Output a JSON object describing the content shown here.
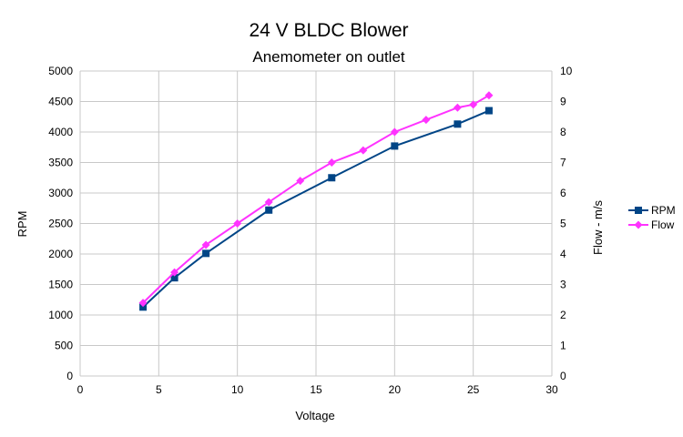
{
  "chart_data": {
    "type": "line",
    "title": "24 V BLDC Blower",
    "subtitle": "Anemometer on outlet",
    "xlabel": "Voltage",
    "ylabel": "RPM",
    "y2label": "Flow - m/s",
    "xlim": [
      0,
      30
    ],
    "ylim": [
      0,
      5000
    ],
    "y2lim": [
      0,
      10
    ],
    "xticks": [
      "0",
      "5",
      "10",
      "15",
      "20",
      "25",
      "30"
    ],
    "yticks": [
      "0",
      "500",
      "1000",
      "1500",
      "2000",
      "2500",
      "3000",
      "3500",
      "4000",
      "4500",
      "5000"
    ],
    "y2ticks": [
      "0",
      "1",
      "2",
      "3",
      "4",
      "5",
      "6",
      "7",
      "8",
      "9",
      "10"
    ],
    "grid": true,
    "legend": "right",
    "series": [
      {
        "name": "RPM",
        "axis": "left",
        "color": "#004586",
        "marker": "square",
        "x": [
          4,
          6,
          8,
          12,
          16,
          20,
          24,
          26
        ],
        "y": [
          1130,
          1610,
          2010,
          2720,
          3250,
          3770,
          4130,
          4350
        ]
      },
      {
        "name": "Flow",
        "axis": "right",
        "color": "#ff33ff",
        "marker": "diamond",
        "x": [
          4,
          6,
          8,
          10,
          12,
          14,
          16,
          18,
          20,
          22,
          24,
          25,
          26
        ],
        "y": [
          2.4,
          3.4,
          4.3,
          5.0,
          5.7,
          6.4,
          7.0,
          7.4,
          8.0,
          8.4,
          8.8,
          8.9,
          9.2
        ]
      }
    ]
  }
}
